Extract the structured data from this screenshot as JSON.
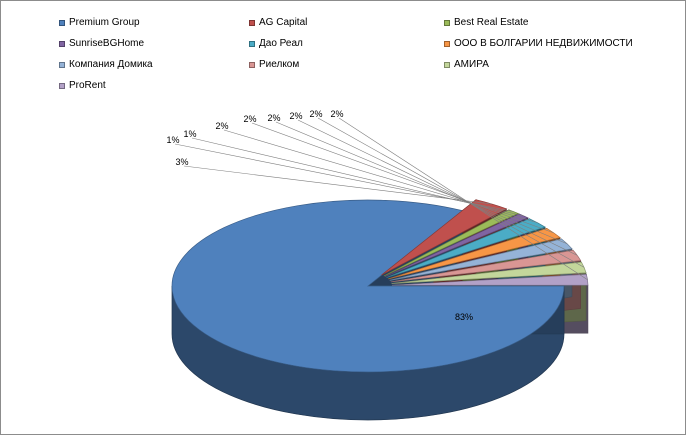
{
  "chart_data": {
    "type": "pie",
    "series": [
      {
        "name": "Premium Group",
        "value": 83,
        "label": "83%",
        "color": "#4F81BD"
      },
      {
        "name": "AG Capital",
        "value": 3,
        "label": "3%",
        "color": "#C0504D"
      },
      {
        "name": "Best Real Estate",
        "value": 1,
        "label": "1%",
        "color": "#9BBB59"
      },
      {
        "name": "SunriseBGHome",
        "value": 1,
        "label": "1%",
        "color": "#8064A2"
      },
      {
        "name": "Дао Реал",
        "value": 2,
        "label": "2%",
        "color": "#4BACC6"
      },
      {
        "name": "ООО В БОЛГАРИИ НЕДВИЖИМОСТИ",
        "value": 2,
        "label": "2%",
        "color": "#F79646"
      },
      {
        "name": "Компания Домика",
        "value": 2,
        "label": "2%",
        "color": "#95B3D7"
      },
      {
        "name": "Риелком",
        "value": 2,
        "label": "2%",
        "color": "#D99694"
      },
      {
        "name": "АМИРА",
        "value": 2,
        "label": "2%",
        "color": "#C3D69B"
      },
      {
        "name": "ProRent",
        "value": 2,
        "label": "2%",
        "color": "#B2A1C7"
      }
    ],
    "legend_position": "top",
    "style": "3D exploded pie"
  }
}
